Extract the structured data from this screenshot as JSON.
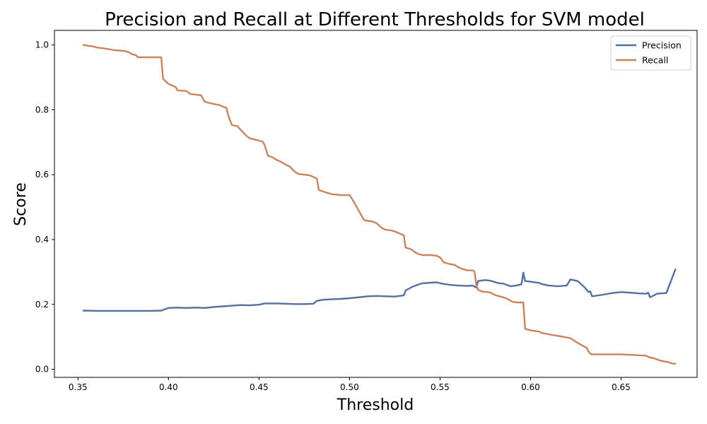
{
  "chart_data": {
    "type": "line",
    "title": "Precision and Recall at Different Thresholds for SVM  model",
    "xlabel": "Threshold",
    "ylabel": "Score",
    "xlim": [
      0.337,
      0.692
    ],
    "ylim": [
      -0.025,
      1.045
    ],
    "xticks": [
      0.35,
      0.4,
      0.45,
      0.5,
      0.55,
      0.6,
      0.65
    ],
    "xtick_labels": [
      "0.35",
      "0.40",
      "0.45",
      "0.50",
      "0.55",
      "0.60",
      "0.65"
    ],
    "yticks": [
      0.0,
      0.2,
      0.4,
      0.6,
      0.8,
      1.0
    ],
    "ytick_labels": [
      "0.0",
      "0.2",
      "0.4",
      "0.6",
      "0.8",
      "1.0"
    ],
    "grid": false,
    "legend": "top-right",
    "series": [
      {
        "name": "Precision",
        "color": "#5470a0",
        "x": [
          0.353,
          0.36,
          0.37,
          0.38,
          0.39,
          0.396,
          0.4,
          0.405,
          0.41,
          0.415,
          0.42,
          0.425,
          0.43,
          0.435,
          0.44,
          0.445,
          0.45,
          0.453,
          0.46,
          0.465,
          0.47,
          0.475,
          0.48,
          0.482,
          0.485,
          0.49,
          0.495,
          0.5,
          0.505,
          0.51,
          0.515,
          0.52,
          0.525,
          0.53,
          0.531,
          0.535,
          0.54,
          0.545,
          0.548,
          0.552,
          0.556,
          0.56,
          0.565,
          0.568,
          0.57,
          0.571,
          0.575,
          0.578,
          0.582,
          0.585,
          0.589,
          0.592,
          0.595,
          0.596,
          0.597,
          0.6,
          0.605,
          0.606,
          0.61,
          0.615,
          0.62,
          0.622,
          0.626,
          0.63,
          0.632,
          0.633,
          0.634,
          0.64,
          0.645,
          0.65,
          0.655,
          0.66,
          0.664,
          0.665,
          0.666,
          0.67,
          0.675,
          0.68
        ],
        "y": [
          0.181,
          0.18,
          0.18,
          0.18,
          0.18,
          0.181,
          0.189,
          0.19,
          0.189,
          0.19,
          0.189,
          0.192,
          0.194,
          0.196,
          0.198,
          0.197,
          0.199,
          0.203,
          0.203,
          0.202,
          0.201,
          0.201,
          0.202,
          0.211,
          0.214,
          0.216,
          0.217,
          0.219,
          0.222,
          0.225,
          0.226,
          0.225,
          0.224,
          0.228,
          0.243,
          0.255,
          0.265,
          0.267,
          0.268,
          0.263,
          0.26,
          0.258,
          0.257,
          0.258,
          0.252,
          0.272,
          0.275,
          0.273,
          0.266,
          0.264,
          0.256,
          0.258,
          0.262,
          0.298,
          0.272,
          0.27,
          0.266,
          0.263,
          0.258,
          0.256,
          0.258,
          0.277,
          0.272,
          0.252,
          0.238,
          0.24,
          0.225,
          0.23,
          0.235,
          0.238,
          0.236,
          0.234,
          0.233,
          0.236,
          0.222,
          0.233,
          0.235,
          0.308
        ]
      },
      {
        "name": "Recall",
        "color": "#c7845e",
        "x": [
          0.353,
          0.355,
          0.358,
          0.36,
          0.362,
          0.365,
          0.368,
          0.37,
          0.375,
          0.378,
          0.38,
          0.382,
          0.383,
          0.385,
          0.39,
          0.395,
          0.396,
          0.397,
          0.4,
          0.402,
          0.404,
          0.405,
          0.41,
          0.412,
          0.415,
          0.418,
          0.42,
          0.425,
          0.428,
          0.43,
          0.432,
          0.433,
          0.435,
          0.438,
          0.44,
          0.443,
          0.445,
          0.448,
          0.45,
          0.452,
          0.453,
          0.455,
          0.457,
          0.46,
          0.462,
          0.465,
          0.467,
          0.47,
          0.472,
          0.475,
          0.478,
          0.48,
          0.482,
          0.483,
          0.485,
          0.487,
          0.49,
          0.495,
          0.5,
          0.502,
          0.505,
          0.508,
          0.51,
          0.513,
          0.515,
          0.518,
          0.52,
          0.523,
          0.525,
          0.528,
          0.53,
          0.531,
          0.534,
          0.535,
          0.537,
          0.54,
          0.545,
          0.548,
          0.55,
          0.552,
          0.555,
          0.558,
          0.56,
          0.562,
          0.565,
          0.568,
          0.569,
          0.57,
          0.571,
          0.573,
          0.576,
          0.578,
          0.58,
          0.582,
          0.585,
          0.588,
          0.59,
          0.593,
          0.595,
          0.596,
          0.597,
          0.6,
          0.605,
          0.606,
          0.61,
          0.615,
          0.618,
          0.62,
          0.622,
          0.625,
          0.628,
          0.631,
          0.632,
          0.633,
          0.634,
          0.64,
          0.65,
          0.66,
          0.664,
          0.665,
          0.668,
          0.672,
          0.676,
          0.678,
          0.68
        ],
        "y": [
          1.0,
          0.998,
          0.996,
          0.993,
          0.991,
          0.989,
          0.986,
          0.984,
          0.982,
          0.978,
          0.971,
          0.969,
          0.962,
          0.962,
          0.962,
          0.962,
          0.962,
          0.896,
          0.88,
          0.875,
          0.87,
          0.86,
          0.858,
          0.849,
          0.847,
          0.845,
          0.825,
          0.818,
          0.815,
          0.81,
          0.806,
          0.783,
          0.753,
          0.75,
          0.738,
          0.72,
          0.712,
          0.708,
          0.705,
          0.702,
          0.693,
          0.658,
          0.655,
          0.645,
          0.64,
          0.63,
          0.625,
          0.608,
          0.602,
          0.6,
          0.598,
          0.593,
          0.588,
          0.553,
          0.549,
          0.545,
          0.54,
          0.537,
          0.537,
          0.52,
          0.49,
          0.46,
          0.458,
          0.455,
          0.45,
          0.435,
          0.43,
          0.428,
          0.425,
          0.418,
          0.413,
          0.375,
          0.37,
          0.366,
          0.358,
          0.352,
          0.352,
          0.35,
          0.345,
          0.33,
          0.325,
          0.322,
          0.315,
          0.31,
          0.305,
          0.305,
          0.302,
          0.26,
          0.245,
          0.24,
          0.238,
          0.236,
          0.23,
          0.226,
          0.222,
          0.215,
          0.208,
          0.206,
          0.206,
          0.206,
          0.125,
          0.12,
          0.116,
          0.112,
          0.108,
          0.103,
          0.1,
          0.098,
          0.096,
          0.085,
          0.075,
          0.066,
          0.055,
          0.048,
          0.046,
          0.046,
          0.046,
          0.043,
          0.042,
          0.038,
          0.034,
          0.026,
          0.022,
          0.018,
          0.017
        ]
      }
    ]
  }
}
